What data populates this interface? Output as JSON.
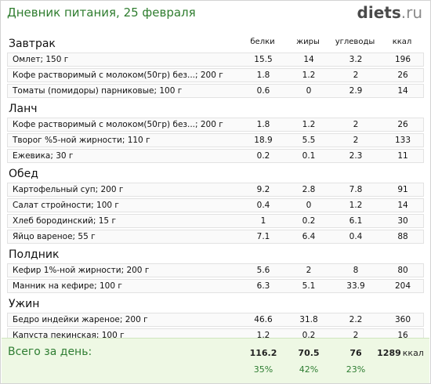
{
  "header": {
    "title": "Дневник питания, 25 февраля",
    "logo_main": "diets",
    "logo_tld": ".ru"
  },
  "columns": {
    "protein": "белки",
    "fat": "жиры",
    "carbs": "углеводы",
    "kcal": "ккал"
  },
  "meals": [
    {
      "title": "Завтрак",
      "items": [
        {
          "name": "Омлет; 150 г",
          "protein": "15.5",
          "fat": "14",
          "carbs": "3.2",
          "kcal": "196"
        },
        {
          "name": "Кофе растворимый с молоком(50гр) без...; 200 г",
          "protein": "1.8",
          "fat": "1.2",
          "carbs": "2",
          "kcal": "26"
        },
        {
          "name": "Томаты (помидоры) парниковые; 100 г",
          "protein": "0.6",
          "fat": "0",
          "carbs": "2.9",
          "kcal": "14"
        }
      ]
    },
    {
      "title": "Ланч",
      "items": [
        {
          "name": "Кофе растворимый с молоком(50гр) без...; 200 г",
          "protein": "1.8",
          "fat": "1.2",
          "carbs": "2",
          "kcal": "26"
        },
        {
          "name": "Творог %5-ной жирности; 110 г",
          "protein": "18.9",
          "fat": "5.5",
          "carbs": "2",
          "kcal": "133"
        },
        {
          "name": "Ежевика; 30 г",
          "protein": "0.2",
          "fat": "0.1",
          "carbs": "2.3",
          "kcal": "11"
        }
      ]
    },
    {
      "title": "Обед",
      "items": [
        {
          "name": "Картофельный суп; 200 г",
          "protein": "9.2",
          "fat": "2.8",
          "carbs": "7.8",
          "kcal": "91"
        },
        {
          "name": "Салат стройности; 100 г",
          "protein": "0.4",
          "fat": "0",
          "carbs": "1.2",
          "kcal": "14"
        },
        {
          "name": "Хлеб бородинский; 15 г",
          "protein": "1",
          "fat": "0.2",
          "carbs": "6.1",
          "kcal": "30"
        },
        {
          "name": "Яйцо вареное; 55 г",
          "protein": "7.1",
          "fat": "6.4",
          "carbs": "0.4",
          "kcal": "88"
        }
      ]
    },
    {
      "title": "Полдник",
      "items": [
        {
          "name": "Кефир 1%-ной жирности; 200 г",
          "protein": "5.6",
          "fat": "2",
          "carbs": "8",
          "kcal": "80"
        },
        {
          "name": "Манник на кефире; 100 г",
          "protein": "6.3",
          "fat": "5.1",
          "carbs": "33.9",
          "kcal": "204"
        }
      ]
    },
    {
      "title": "Ужин",
      "items": [
        {
          "name": "Бедро индейки жареное; 200 г",
          "protein": "46.6",
          "fat": "31.8",
          "carbs": "2.2",
          "kcal": "360"
        },
        {
          "name": "Капуста пекинская; 100 г",
          "protein": "1.2",
          "fat": "0.2",
          "carbs": "2",
          "kcal": "16"
        }
      ]
    }
  ],
  "total": {
    "label": "Всего за день:",
    "protein": "116.2",
    "fat": "70.5",
    "carbs": "76",
    "kcal": "1289",
    "kcal_unit": "ккал",
    "protein_pct": "35%",
    "fat_pct": "42%",
    "carbs_pct": "23%"
  },
  "colors": {
    "title_green": "#2f7d2f",
    "total_bg": "#eef8e4"
  }
}
